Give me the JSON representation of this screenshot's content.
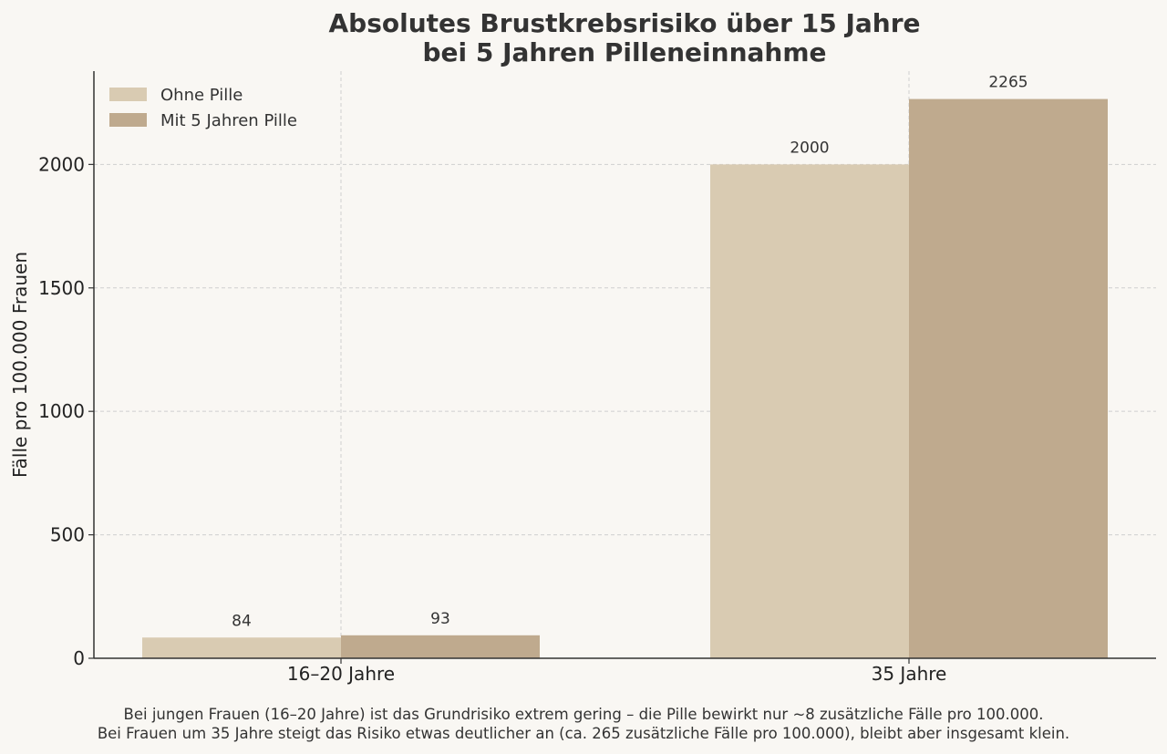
{
  "chart_data": {
    "type": "bar",
    "title_lines": [
      "Absolutes Brustkrebsrisiko über 15 Jahre",
      "bei 5 Jahren Pilleneinnahme"
    ],
    "categories": [
      "16–20 Jahre",
      "35 Jahre"
    ],
    "series": [
      {
        "name": "Ohne Pille",
        "values": [
          84,
          2000
        ],
        "color": "#d9cbb2"
      },
      {
        "name": "Mit 5 Jahren Pille",
        "values": [
          93,
          2265
        ],
        "color": "#bfaa8e"
      }
    ],
    "ylabel": "Fälle pro 100.000 Frauen",
    "xlabel": "",
    "ylim": [
      0,
      2378
    ],
    "yticks": [
      0,
      500,
      1000,
      1500,
      2000
    ],
    "grid": true,
    "legend_position": "top-left",
    "data_labels": true
  },
  "caption": {
    "line1": "Bei jungen Frauen (16–20 Jahre) ist das Grundrisiko extrem gering – die Pille bewirkt nur ~8 zusätzliche Fälle pro 100.000.",
    "line2": "Bei Frauen um 35 Jahre steigt das Risiko etwas deutlicher an (ca. 265 zusätzliche Fälle pro 100.000), bleibt aber insgesamt klein."
  },
  "colors": {
    "background": "#f9f7f3",
    "text": "#333333",
    "grid": "#cfcfcf"
  }
}
